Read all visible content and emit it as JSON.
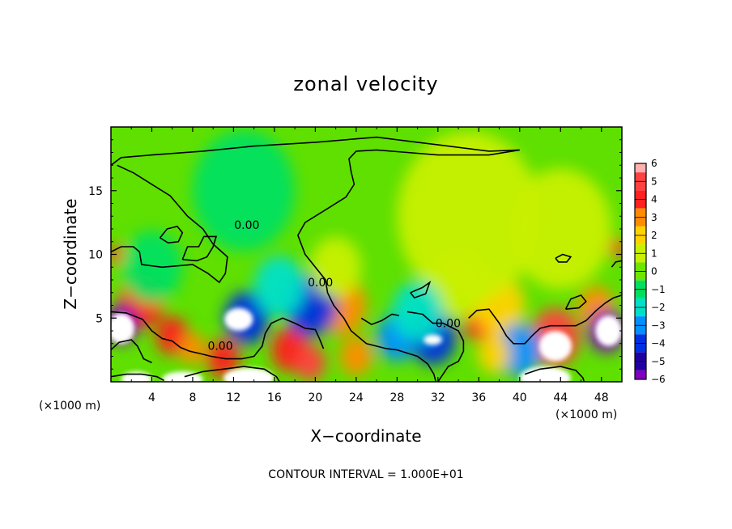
{
  "chart_data": {
    "type": "heatmap",
    "title": "zonal velocity",
    "xlabel": "X−coordinate",
    "ylabel": "Z−coordinate",
    "x_unit": "(×1000 m)",
    "z_unit": "(×1000 m)",
    "xlim": [
      0,
      50
    ],
    "ylim": [
      0,
      20
    ],
    "x_ticks": [
      4,
      8,
      12,
      16,
      20,
      24,
      28,
      32,
      36,
      40,
      44,
      48
    ],
    "x_tick_labels": [
      "4",
      "8",
      "12",
      "16",
      "20",
      "24",
      "28",
      "32",
      "36",
      "40",
      "44",
      "48"
    ],
    "y_ticks": [
      5,
      10,
      15
    ],
    "y_tick_labels": [
      "5",
      "10",
      "15"
    ],
    "colorbar": {
      "ticks": [
        6,
        5,
        4,
        3,
        2,
        1,
        0,
        -1,
        -2,
        -3,
        -4,
        -5,
        -6
      ],
      "tick_labels": [
        "6",
        "5",
        "4",
        "3",
        "2",
        "1",
        "0",
        "−1",
        "−2",
        "−3",
        "−4",
        "−5",
        "−6"
      ],
      "colors": [
        "#ffb0b0",
        "#ff4040",
        "#ff2020",
        "#ff8c00",
        "#ffd200",
        "#c8f000",
        "#6ee600",
        "#00e060",
        "#00e0c8",
        "#0090ff",
        "#0030e0",
        "#2000a0",
        "#8000c0"
      ]
    },
    "contour_labels": [
      {
        "text": "0.00",
        "x": 13.3,
        "z": 12.0
      },
      {
        "text": "0.00",
        "x": 10.7,
        "z": 2.5
      },
      {
        "text": "0.00",
        "x": 20.5,
        "z": 7.5
      },
      {
        "text": "0.00",
        "x": 33.0,
        "z": 4.3
      }
    ],
    "annotation": "CONTOUR INTERVAL =  1.000E+01",
    "blobs": [
      {
        "x": 3.0,
        "z": 6.3,
        "r": 2.2,
        "v": 4
      },
      {
        "x": 6.0,
        "z": 3.6,
        "r": 1.6,
        "v": 4
      },
      {
        "x": 8.0,
        "z": 2.6,
        "r": 1.3,
        "v": 3
      },
      {
        "x": 11.0,
        "z": 1.8,
        "r": 1.6,
        "v": 4
      },
      {
        "x": 17.5,
        "z": 2.5,
        "r": 1.8,
        "v": 4
      },
      {
        "x": 19.5,
        "z": 1.5,
        "r": 1.5,
        "v": 5
      },
      {
        "x": 22.5,
        "z": 6.0,
        "r": 2.5,
        "v": 3
      },
      {
        "x": 24.0,
        "z": 2.0,
        "r": 1.6,
        "v": 3
      },
      {
        "x": 36.0,
        "z": 4.5,
        "r": 1.4,
        "v": 4
      },
      {
        "x": 38.0,
        "z": 6.0,
        "r": 2.5,
        "v": 2
      },
      {
        "x": 43.5,
        "z": 3.5,
        "r": 2.4,
        "v": 5
      },
      {
        "x": 47.5,
        "z": 5.8,
        "r": 1.8,
        "v": 3
      },
      {
        "x": 0.5,
        "z": 10.0,
        "r": 0.8,
        "v": 4
      },
      {
        "x": 49.6,
        "z": 10.5,
        "r": 0.8,
        "v": 4
      },
      {
        "x": 1.0,
        "z": 4.5,
        "r": 1.6,
        "v": -6
      },
      {
        "x": 13.3,
        "z": 5.0,
        "r": 2.2,
        "v": -4
      },
      {
        "x": 19.5,
        "z": 6.0,
        "r": 2.6,
        "v": -4
      },
      {
        "x": 16.5,
        "z": 7.5,
        "r": 2.5,
        "v": -2
      },
      {
        "x": 28.0,
        "z": 3.5,
        "r": 2.0,
        "v": -3
      },
      {
        "x": 31.5,
        "z": 3.5,
        "r": 2.3,
        "v": -4
      },
      {
        "x": 40.0,
        "z": 2.5,
        "r": 2.2,
        "v": -3
      },
      {
        "x": 48.5,
        "z": 4.0,
        "r": 1.8,
        "v": -6
      },
      {
        "x": 34.0,
        "z": 7.8,
        "r": 3.0,
        "v": 1
      },
      {
        "x": 22.0,
        "z": 9.0,
        "r": 2.5,
        "v": 1
      },
      {
        "x": 35.0,
        "z": 13.0,
        "r": 7.0,
        "v": 1
      },
      {
        "x": 44.0,
        "z": 12.0,
        "r": 5.0,
        "v": 1
      },
      {
        "x": 13.0,
        "z": 15.0,
        "r": 5.0,
        "v": -1
      },
      {
        "x": 4.0,
        "z": 9.0,
        "r": 3.0,
        "v": -1
      },
      {
        "x": 30.0,
        "z": 5.5,
        "r": 2.5,
        "v": -2
      },
      {
        "x": 37.5,
        "z": 2.2,
        "r": 1.6,
        "v": 2
      }
    ],
    "white_regions": [
      {
        "x": 1.0,
        "z": 4.2,
        "rx": 1.3,
        "rz": 1.2
      },
      {
        "x": 12.5,
        "z": 4.9,
        "rx": 1.4,
        "rz": 0.9
      },
      {
        "x": 31.5,
        "z": 3.3,
        "rx": 0.9,
        "rz": 0.4
      },
      {
        "x": 43.5,
        "z": 2.8,
        "rx": 1.6,
        "rz": 1.2
      },
      {
        "x": 48.7,
        "z": 4.0,
        "rx": 1.3,
        "rz": 1.2
      },
      {
        "x": 2.5,
        "z": 0.2,
        "rx": 1.5,
        "rz": 0.6
      },
      {
        "x": 7.0,
        "z": 0.2,
        "rx": 2.0,
        "rz": 0.6
      },
      {
        "x": 13.5,
        "z": 0.3,
        "rx": 2.5,
        "rz": 0.8
      },
      {
        "x": 42.5,
        "z": 0.3,
        "rx": 2.5,
        "rz": 0.9
      }
    ],
    "contour_paths": [
      [
        [
          0,
          17
        ],
        [
          1,
          17.6
        ],
        [
          4,
          17.8
        ],
        [
          9,
          18.1
        ],
        [
          14,
          18.5
        ],
        [
          20,
          18.8
        ],
        [
          26,
          19.2
        ],
        [
          30,
          18.8
        ],
        [
          33,
          18.5
        ],
        [
          37,
          18.1
        ],
        [
          40,
          18.2
        ],
        [
          37,
          17.8
        ],
        [
          32,
          17.8
        ],
        [
          29,
          18.0
        ],
        [
          26,
          18.2
        ],
        [
          24,
          18.1
        ],
        [
          23.3,
          17.5
        ],
        [
          23.5,
          16.5
        ],
        [
          23.8,
          15.5
        ],
        [
          23,
          14.5
        ],
        [
          21,
          13.5
        ],
        [
          19,
          12.5
        ],
        [
          18.3,
          11.5
        ],
        [
          19,
          10.0
        ],
        [
          20,
          9.0
        ],
        [
          21,
          8.0
        ],
        [
          21.2,
          7.0
        ],
        [
          21.8,
          6.0
        ],
        [
          22.8,
          5.0
        ],
        [
          23.5,
          4.0
        ],
        [
          25.0,
          3.0
        ],
        [
          27.0,
          2.6
        ],
        [
          28.0,
          2.5
        ]
      ],
      [
        [
          0,
          10.2
        ],
        [
          1,
          10.6
        ],
        [
          2.2,
          10.6
        ],
        [
          2.8,
          10.2
        ],
        [
          3,
          9.2
        ],
        [
          5,
          9.0
        ],
        [
          8,
          9.2
        ],
        [
          9.5,
          8.5
        ],
        [
          10.6,
          7.8
        ],
        [
          11.2,
          8.5
        ],
        [
          11.4,
          9.8
        ],
        [
          10,
          10.8
        ],
        [
          9,
          12.0
        ],
        [
          7.5,
          13.0
        ],
        [
          5.8,
          14.6
        ],
        [
          4,
          15.5
        ],
        [
          2.2,
          16.4
        ],
        [
          0.6,
          17.0
        ]
      ],
      [
        [
          7.0,
          9.6
        ],
        [
          7.5,
          10.6
        ],
        [
          8.6,
          10.6
        ],
        [
          9.1,
          11.4
        ],
        [
          10.3,
          11.4
        ],
        [
          10.0,
          10.6
        ],
        [
          9.4,
          9.8
        ],
        [
          8.4,
          9.5
        ],
        [
          7.0,
          9.6
        ]
      ],
      [
        [
          4.8,
          11.3
        ],
        [
          5.5,
          12.0
        ],
        [
          6.5,
          12.2
        ],
        [
          7.0,
          11.7
        ],
        [
          6.6,
          11.0
        ],
        [
          5.6,
          10.9
        ],
        [
          4.8,
          11.3
        ]
      ],
      [
        [
          0,
          5.5
        ],
        [
          1.5,
          5.4
        ],
        [
          3.1,
          4.9
        ],
        [
          4.0,
          4.0
        ],
        [
          5.0,
          3.4
        ],
        [
          6.0,
          3.2
        ],
        [
          6.8,
          2.7
        ],
        [
          7.7,
          2.4
        ],
        [
          8.8,
          2.2
        ],
        [
          9.8,
          2.0
        ],
        [
          11.2,
          1.8
        ],
        [
          12.8,
          1.8
        ],
        [
          14.0,
          2.0
        ],
        [
          14.8,
          2.8
        ],
        [
          15.1,
          3.8
        ],
        [
          15.7,
          4.6
        ],
        [
          16.8,
          5.0
        ],
        [
          18.0,
          4.6
        ],
        [
          19.0,
          4.2
        ],
        [
          20.0,
          4.1
        ],
        [
          20.4,
          3.4
        ],
        [
          20.8,
          2.6
        ]
      ],
      [
        [
          0,
          2.5
        ],
        [
          0.8,
          3.1
        ],
        [
          2.0,
          3.3
        ],
        [
          2.6,
          2.8
        ],
        [
          3.2,
          1.8
        ],
        [
          4.0,
          1.5
        ]
      ],
      [
        [
          29.0,
          5.5
        ],
        [
          30.5,
          5.3
        ],
        [
          31.5,
          4.6
        ],
        [
          32.5,
          4.6
        ],
        [
          34.0,
          4.0
        ],
        [
          34.5,
          3.2
        ],
        [
          34.5,
          2.4
        ],
        [
          34.0,
          1.6
        ],
        [
          33.0,
          1.2
        ],
        [
          32.5,
          0.6
        ],
        [
          32.0,
          0.0
        ]
      ],
      [
        [
          35.0,
          5.0
        ],
        [
          35.8,
          5.6
        ],
        [
          37.0,
          5.7
        ],
        [
          38.0,
          4.6
        ],
        [
          38.7,
          3.6
        ],
        [
          39.4,
          3.0
        ],
        [
          40.5,
          3.0
        ],
        [
          41.2,
          3.6
        ],
        [
          42.0,
          4.2
        ],
        [
          43.0,
          4.4
        ],
        [
          44.2,
          4.4
        ],
        [
          45.5,
          4.4
        ],
        [
          46.5,
          4.8
        ],
        [
          47.5,
          5.6
        ],
        [
          48.4,
          6.2
        ],
        [
          49.2,
          6.6
        ],
        [
          50.0,
          6.8
        ]
      ],
      [
        [
          29.3,
          7.0
        ],
        [
          30.5,
          7.4
        ],
        [
          31.2,
          7.8
        ],
        [
          30.8,
          6.9
        ],
        [
          29.7,
          6.6
        ],
        [
          29.3,
          7.0
        ]
      ],
      [
        [
          43.5,
          9.7
        ],
        [
          44.2,
          10.0
        ],
        [
          45.0,
          9.8
        ],
        [
          44.6,
          9.4
        ],
        [
          43.8,
          9.4
        ],
        [
          43.5,
          9.7
        ]
      ],
      [
        [
          44.5,
          5.7
        ],
        [
          45.0,
          6.5
        ],
        [
          46.0,
          6.8
        ],
        [
          46.5,
          6.3
        ],
        [
          45.8,
          5.8
        ],
        [
          44.5,
          5.7
        ]
      ],
      [
        [
          0,
          0.4
        ],
        [
          1.5,
          0.6
        ],
        [
          3.0,
          0.6
        ],
        [
          4.5,
          0.4
        ],
        [
          5.2,
          0.1
        ]
      ],
      [
        [
          7.2,
          0.4
        ],
        [
          9.0,
          0.8
        ],
        [
          11.0,
          1.0
        ],
        [
          13.0,
          1.2
        ],
        [
          15.0,
          1.0
        ],
        [
          16.2,
          0.4
        ],
        [
          16.5,
          0.0
        ]
      ],
      [
        [
          40.5,
          0.6
        ],
        [
          42.0,
          1.0
        ],
        [
          44.0,
          1.2
        ],
        [
          45.5,
          0.9
        ],
        [
          46.2,
          0.3
        ],
        [
          46.3,
          0.0
        ]
      ],
      [
        [
          49.0,
          9.0
        ],
        [
          49.4,
          9.4
        ],
        [
          50.0,
          9.5
        ]
      ],
      [
        [
          24.5,
          5.0
        ],
        [
          25.5,
          4.5
        ],
        [
          26.5,
          4.8
        ],
        [
          27.5,
          5.3
        ],
        [
          28.2,
          5.2
        ]
      ],
      [
        [
          28.0,
          2.5
        ],
        [
          30.0,
          2.0
        ],
        [
          31.0,
          1.4
        ],
        [
          31.6,
          0.6
        ],
        [
          31.8,
          0.0
        ]
      ]
    ]
  }
}
